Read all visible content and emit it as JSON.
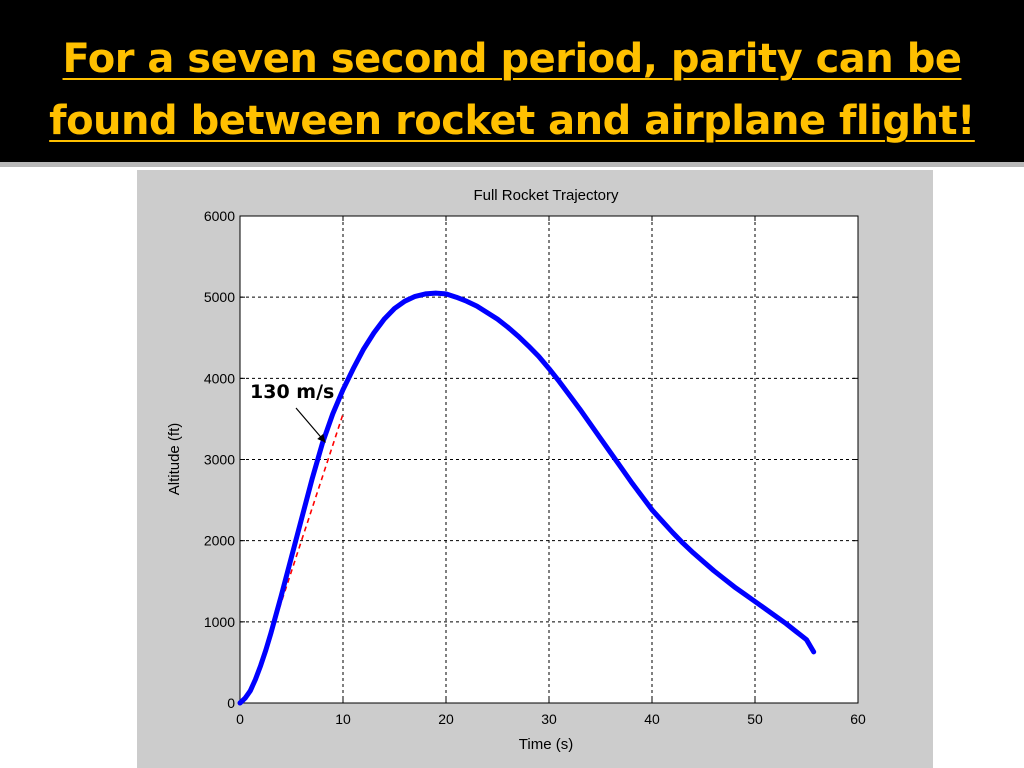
{
  "slide": {
    "title_line1": "For a seven second period, parity can be",
    "title_line2": "found between rocket and airplane flight!"
  },
  "colors": {
    "title_bar": "#000000",
    "title_text": "#ffc000",
    "figure_background": "#cccccc",
    "series": "#0000ff",
    "fit_line": "#ff0000"
  },
  "chart_data": {
    "type": "line",
    "title": "Full Rocket Trajectory",
    "xlabel": "Time (s)",
    "ylabel": "Altitude (ft)",
    "xlim": [
      0,
      60
    ],
    "ylim": [
      0,
      6000
    ],
    "xticks": [
      0,
      10,
      20,
      30,
      40,
      50,
      60
    ],
    "yticks": [
      0,
      1000,
      2000,
      3000,
      4000,
      5000,
      6000
    ],
    "grid": true,
    "series": [
      {
        "name": "",
        "x": [
          0,
          0.5,
          1,
          1.5,
          2,
          2.5,
          3,
          4,
          5,
          6,
          7,
          8,
          9,
          10,
          11,
          12,
          13,
          14,
          15,
          16,
          17,
          18,
          19,
          20,
          21,
          22,
          23,
          24,
          25,
          26,
          27,
          28,
          29,
          30,
          31,
          32,
          33,
          34,
          35,
          36,
          37,
          38,
          39,
          40,
          41,
          42,
          43,
          44,
          45,
          46,
          47,
          48,
          49,
          50,
          51,
          52,
          53,
          54,
          55,
          55.7
        ],
        "y": [
          0,
          60,
          150,
          290,
          460,
          650,
          860,
          1320,
          1800,
          2280,
          2760,
          3200,
          3560,
          3860,
          4120,
          4360,
          4560,
          4730,
          4860,
          4950,
          5010,
          5040,
          5050,
          5040,
          5000,
          4950,
          4890,
          4810,
          4730,
          4630,
          4520,
          4400,
          4270,
          4120,
          3960,
          3790,
          3620,
          3440,
          3260,
          3080,
          2900,
          2720,
          2550,
          2380,
          2240,
          2100,
          1970,
          1850,
          1740,
          1630,
          1530,
          1430,
          1340,
          1250,
          1160,
          1070,
          980,
          880,
          780,
          630
        ]
      }
    ],
    "fit_line": {
      "x": [
        3,
        10
      ],
      "y": [
        850,
        3560
      ]
    },
    "annotation": {
      "text": "130 m/s",
      "point": [
        8.3,
        3210
      ]
    }
  }
}
